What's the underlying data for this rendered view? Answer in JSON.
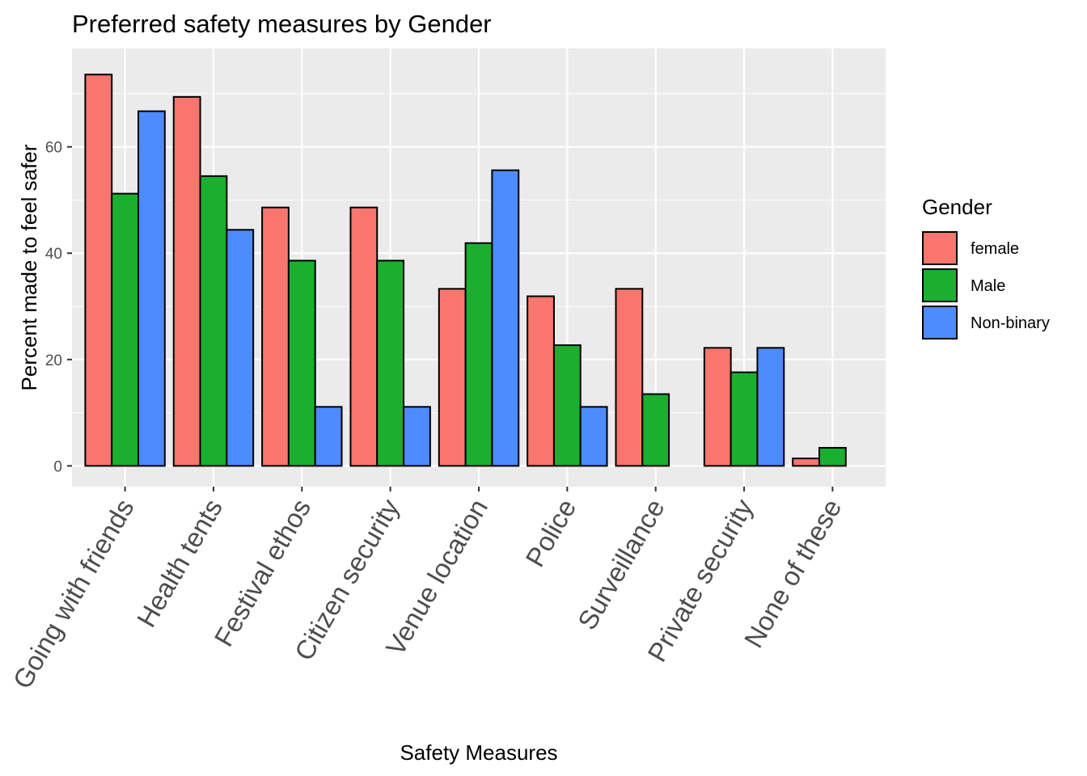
{
  "chart_data": {
    "type": "bar",
    "title": "Preferred safety measures by Gender",
    "xlabel": "Safety Measures",
    "ylabel": "Percent made to feel safer",
    "categories": [
      "Going with friends",
      "Health tents",
      "Festival ethos",
      "Citizen security",
      "Venue location",
      "Police",
      "Surveillance",
      "Private security",
      "None of these"
    ],
    "series": [
      {
        "name": "female",
        "color": "#F8766D",
        "values": [
          73.6,
          69.4,
          48.6,
          48.6,
          33.3,
          31.9,
          33.3,
          22.2,
          1.4
        ]
      },
      {
        "name": "Male",
        "color": "#1AAF2E",
        "values": [
          51.2,
          54.5,
          38.6,
          38.6,
          41.9,
          22.7,
          13.5,
          17.6,
          3.4
        ]
      },
      {
        "name": "Non-binary",
        "color": "#4E8BFF",
        "values": [
          66.7,
          44.4,
          11.1,
          11.1,
          55.6,
          11.1,
          0,
          22.2,
          0
        ]
      }
    ],
    "ylim": [
      -3.9,
      78.5
    ],
    "yticks": [
      0,
      20,
      40,
      60
    ],
    "grid": true,
    "legend": {
      "title": "Gender",
      "position": "right"
    }
  }
}
